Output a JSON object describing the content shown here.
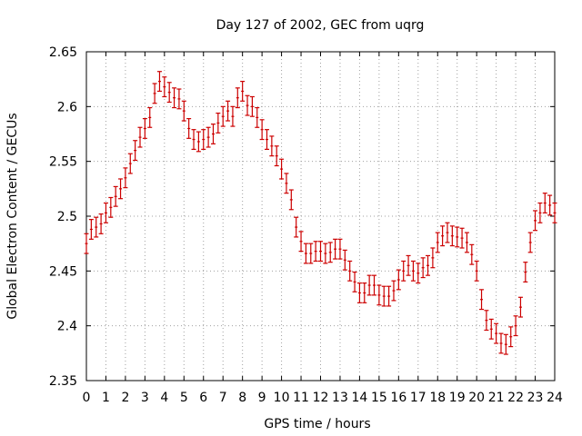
{
  "chart_data": {
    "type": "scatter",
    "title": "Day 127 of 2002, GEC from uqrg",
    "xlabel": "GPS time / hours",
    "ylabel": "Global Electron Content / GECUs",
    "xlim": [
      0,
      24
    ],
    "ylim": [
      2.35,
      2.65
    ],
    "grid": true,
    "x_ticks": [
      "0",
      "1",
      "2",
      "3",
      "4",
      "5",
      "6",
      "7",
      "8",
      "9",
      "10",
      "11",
      "12",
      "13",
      "14",
      "15",
      "16",
      "17",
      "18",
      "19",
      "20",
      "21",
      "22",
      "23",
      "24"
    ],
    "y_ticks": [
      "2.35",
      "2.4",
      "2.45",
      "2.5",
      "2.55",
      "2.6",
      "2.65"
    ],
    "series": [
      {
        "color": "#cc0000",
        "error": 0.009,
        "x": [
          0,
          0.25,
          0.5,
          0.75,
          1,
          1.25,
          1.5,
          1.75,
          2,
          2.25,
          2.5,
          2.75,
          3,
          3.25,
          3.5,
          3.75,
          4,
          4.25,
          4.5,
          4.75,
          5,
          5.25,
          5.5,
          5.75,
          6,
          6.25,
          6.5,
          6.75,
          7,
          7.25,
          7.5,
          7.75,
          8,
          8.25,
          8.5,
          8.75,
          9,
          9.25,
          9.5,
          9.75,
          10,
          10.25,
          10.5,
          10.75,
          11,
          11.25,
          11.5,
          11.75,
          12,
          12.25,
          12.5,
          12.75,
          13,
          13.25,
          13.5,
          13.75,
          14,
          14.25,
          14.5,
          14.75,
          15,
          15.25,
          15.5,
          15.75,
          16,
          16.25,
          16.5,
          16.75,
          17,
          17.25,
          17.5,
          17.75,
          18,
          18.25,
          18.5,
          18.75,
          19,
          19.25,
          19.5,
          19.75,
          20,
          20.25,
          20.5,
          20.75,
          21,
          21.25,
          21.5,
          21.75,
          22,
          22.25,
          22.5,
          22.75,
          23,
          23.25,
          23.5,
          23.75,
          24
        ],
        "y": [
          2.475,
          2.488,
          2.49,
          2.493,
          2.503,
          2.508,
          2.518,
          2.525,
          2.535,
          2.548,
          2.56,
          2.572,
          2.58,
          2.59,
          2.612,
          2.623,
          2.618,
          2.613,
          2.608,
          2.607,
          2.596,
          2.58,
          2.57,
          2.568,
          2.57,
          2.572,
          2.575,
          2.585,
          2.591,
          2.596,
          2.591,
          2.608,
          2.614,
          2.601,
          2.6,
          2.59,
          2.579,
          2.57,
          2.564,
          2.555,
          2.543,
          2.53,
          2.515,
          2.49,
          2.477,
          2.466,
          2.466,
          2.468,
          2.468,
          2.466,
          2.467,
          2.47,
          2.47,
          2.46,
          2.45,
          2.44,
          2.43,
          2.43,
          2.437,
          2.437,
          2.428,
          2.427,
          2.427,
          2.432,
          2.442,
          2.45,
          2.455,
          2.45,
          2.448,
          2.453,
          2.455,
          2.462,
          2.476,
          2.482,
          2.485,
          2.482,
          2.481,
          2.48,
          2.476,
          2.465,
          2.45,
          2.424,
          2.405,
          2.397,
          2.393,
          2.384,
          2.383,
          2.39,
          2.4,
          2.417,
          2.449,
          2.476,
          2.496,
          2.503,
          2.512,
          2.51,
          2.503
        ]
      }
    ]
  }
}
